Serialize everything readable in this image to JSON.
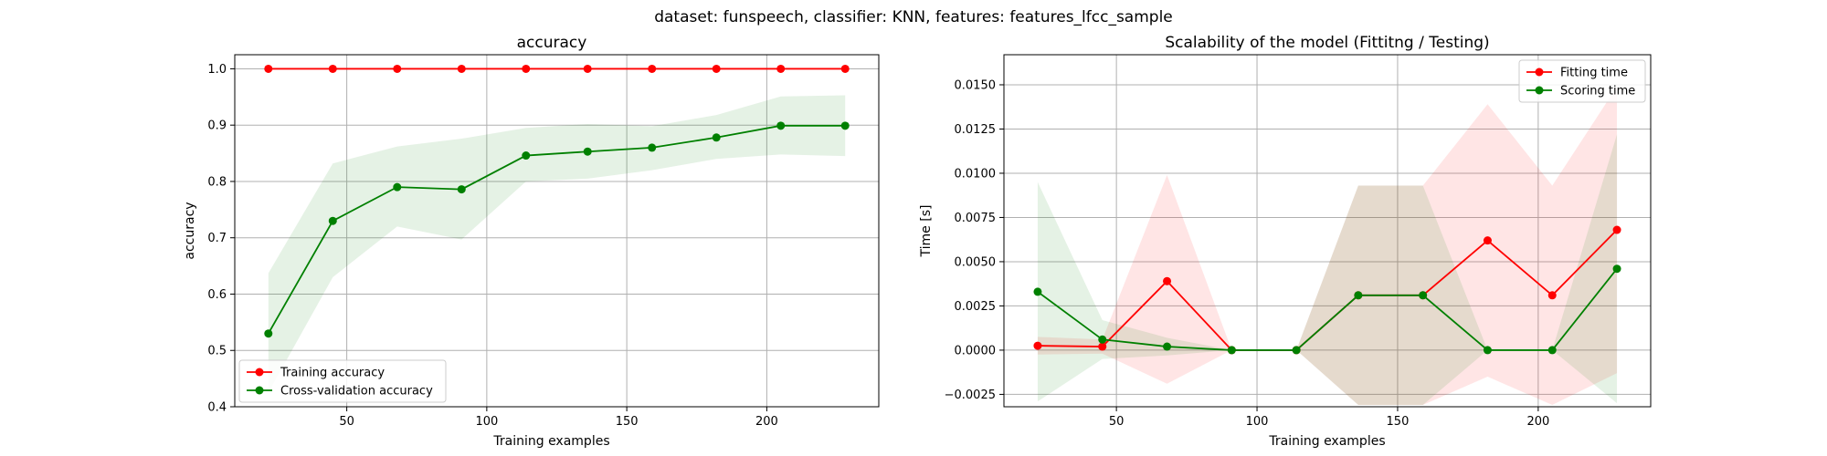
{
  "suptitle": "dataset: funspeech, classifier: KNN, features: features_lfcc_sample",
  "colors": {
    "train": "#ff0000",
    "cv": "#008000",
    "grid": "#b0b0b0"
  },
  "chart_data": [
    {
      "type": "line",
      "title": "accuracy",
      "xlabel": "Training examples",
      "ylabel": "accuracy",
      "xlim": [
        10,
        240
      ],
      "ylim": [
        0.4,
        1.025
      ],
      "xticks": [
        50,
        100,
        150,
        200
      ],
      "yticks": [
        0.4,
        0.5,
        0.6,
        0.7,
        0.8,
        0.9,
        1.0
      ],
      "ytick_labels": [
        "0.4",
        "0.5",
        "0.6",
        "0.7",
        "0.8",
        "0.9",
        "1.0"
      ],
      "grid": true,
      "legend": "lower-left",
      "x": [
        22,
        45,
        68,
        91,
        114,
        136,
        159,
        182,
        205,
        228
      ],
      "series": [
        {
          "name": "Training accuracy",
          "color": "#ff0000",
          "values": [
            1.0,
            1.0,
            1.0,
            1.0,
            1.0,
            1.0,
            1.0,
            1.0,
            1.0,
            1.0
          ],
          "band_low": [
            1.0,
            1.0,
            1.0,
            1.0,
            1.0,
            1.0,
            1.0,
            1.0,
            1.0,
            1.0
          ],
          "band_high": [
            1.0,
            1.0,
            1.0,
            1.0,
            1.0,
            1.0,
            1.0,
            1.0,
            1.0,
            1.0
          ]
        },
        {
          "name": "Cross-validation accuracy",
          "color": "#008000",
          "values": [
            0.53,
            0.73,
            0.79,
            0.786,
            0.846,
            0.853,
            0.86,
            0.878,
            0.899,
            0.899
          ],
          "band_low": [
            0.425,
            0.63,
            0.72,
            0.697,
            0.8,
            0.805,
            0.82,
            0.84,
            0.848,
            0.845
          ],
          "band_high": [
            0.637,
            0.832,
            0.862,
            0.876,
            0.895,
            0.902,
            0.898,
            0.918,
            0.951,
            0.953
          ]
        }
      ]
    },
    {
      "type": "line",
      "title": "Scalability of the model (Fittitng / Testing)",
      "xlabel": "Training examples",
      "ylabel": "Time [s]",
      "xlim": [
        10,
        240
      ],
      "ylim": [
        -0.0032,
        0.0167
      ],
      "xticks": [
        50,
        100,
        150,
        200
      ],
      "yticks": [
        -0.0025,
        0.0,
        0.0025,
        0.005,
        0.0075,
        0.01,
        0.0125,
        0.015
      ],
      "ytick_labels": [
        "−0.0025",
        "0.0000",
        "0.0025",
        "0.0050",
        "0.0075",
        "0.0100",
        "0.0125",
        "0.0150"
      ],
      "grid": true,
      "legend": "top-right",
      "x": [
        22,
        45,
        68,
        91,
        114,
        136,
        159,
        182,
        205,
        228
      ],
      "series": [
        {
          "name": "Fitting time",
          "color": "#ff0000",
          "values": [
            0.00025,
            0.0002,
            0.0039,
            0.0,
            0.0,
            0.0031,
            0.0031,
            0.0062,
            0.0031,
            0.0068
          ],
          "band_low": [
            -0.00025,
            -0.0002,
            -0.0019,
            0.0,
            0.0,
            -0.0031,
            -0.0031,
            -0.0015,
            -0.0031,
            -0.0013
          ],
          "band_high": [
            0.00075,
            0.0006,
            0.0099,
            0.0,
            0.0,
            0.0093,
            0.0093,
            0.0139,
            0.0093,
            0.0149
          ]
        },
        {
          "name": "Scoring time",
          "color": "#008000",
          "values": [
            0.0033,
            0.0006,
            0.0002,
            0.0,
            0.0,
            0.0031,
            0.0031,
            0.0,
            0.0,
            0.0046
          ],
          "band_low": [
            -0.0029,
            -0.0005,
            -0.0003,
            0.0,
            0.0,
            -0.0031,
            -0.0031,
            0.0,
            0.0,
            -0.003
          ],
          "band_high": [
            0.0095,
            0.0017,
            0.0007,
            0.0,
            0.0,
            0.0093,
            0.0093,
            0.0,
            0.0,
            0.0122
          ]
        }
      ]
    }
  ]
}
